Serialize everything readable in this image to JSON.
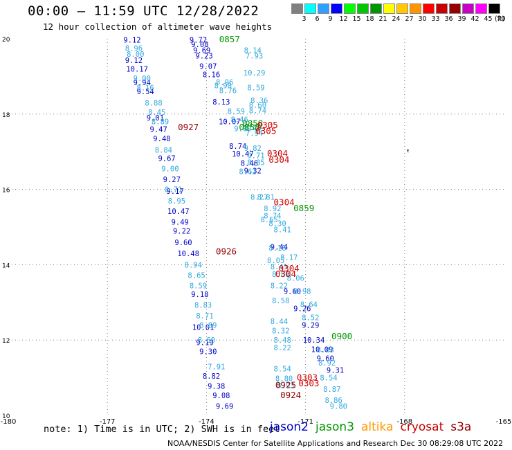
{
  "header": {
    "title": "00:00 – 11:59 UTC 12/28/2022",
    "subtitle": "12 hour collection of altimeter wave heights"
  },
  "colorbar": {
    "labels": [
      "3",
      "6",
      "9",
      "12",
      "15",
      "18",
      "21",
      "24",
      "27",
      "30",
      "33",
      "36",
      "39",
      "42",
      "45",
      "70"
    ],
    "unit": "(ft)",
    "colors": [
      "#808080",
      "#00ffff",
      "#30a0ff",
      "#0000ff",
      "#00ff00",
      "#00c800",
      "#009600",
      "#ffff00",
      "#ffc800",
      "#ff9600",
      "#ff0000",
      "#c80000",
      "#960000",
      "#c800c8",
      "#ff00ff",
      "#000000"
    ]
  },
  "footer": {
    "note": "note: 1) Time is in UTC; 2) SWH is in feet",
    "credit": "NOAA/NESDIS Center for Satellite Applications and Research  Dec 30 08:29:08 UTC 2022",
    "legend": [
      {
        "name": "jason2",
        "color": "#0000c8"
      },
      {
        "name": "jason3",
        "color": "#009600"
      },
      {
        "name": "altika",
        "color": "#ff9600"
      },
      {
        "name": "cryosat",
        "color": "#c80000"
      },
      {
        "name": "s3a",
        "color": "#960000"
      }
    ]
  },
  "chart_data": {
    "type": "scatter",
    "xlim": [
      -180,
      -165
    ],
    "ylim": [
      10,
      20
    ],
    "x_ticks": [
      -180,
      -177,
      -174,
      -171,
      -168,
      -165
    ],
    "x_tick_labels": [
      "-180",
      "-177",
      "-174",
      "-171",
      "-168",
      "-165"
    ],
    "y_ticks": [
      10,
      12,
      14,
      16,
      18,
      20
    ],
    "y_tick_labels": [
      "10",
      "12",
      "14",
      "16",
      "18",
      "20"
    ],
    "grid": true,
    "colors": {
      "jason2": "#0000c8",
      "altika_light": "#30a8e0",
      "jason3": "#009600",
      "cryosat": "#d00000",
      "s3a": "#960000"
    },
    "symbols": [
      {
        "x": -167.9,
        "y": 17.0,
        "text": "ᴱ"
      }
    ],
    "series": [
      {
        "name": "jason2",
        "color_key": "jason2",
        "points": [
          [
            -174.25,
            19.97,
            "9.77"
          ],
          [
            -174.2,
            19.85,
            "9.08"
          ],
          [
            -174.14,
            19.7,
            "9.69"
          ],
          [
            -174.07,
            19.55,
            "9.23"
          ],
          [
            -173.95,
            19.27,
            "9.07"
          ],
          [
            -173.85,
            19.05,
            "8.16"
          ],
          [
            -173.55,
            18.33,
            "8.13"
          ],
          [
            -173.3,
            17.8,
            "10.07"
          ],
          [
            -173.05,
            17.15,
            "8.74"
          ],
          [
            -172.9,
            16.95,
            "10.47"
          ],
          [
            -172.7,
            16.7,
            "8.46"
          ],
          [
            -172.6,
            16.5,
            "9.32"
          ],
          [
            -171.8,
            14.48,
            "9.44"
          ],
          [
            -171.4,
            13.3,
            "9.60"
          ],
          [
            -171.1,
            12.84,
            "9.26"
          ],
          [
            -170.85,
            12.4,
            "9.29"
          ],
          [
            -170.75,
            12.0,
            "10.34"
          ],
          [
            -170.5,
            11.76,
            "10.09"
          ],
          [
            -170.4,
            11.52,
            "9.60"
          ],
          [
            -170.1,
            11.2,
            "9.31"
          ]
        ]
      },
      {
        "name": "jason2",
        "color_key": "jason2",
        "points": [
          [
            -176.25,
            19.97,
            "9.12"
          ],
          [
            -176.2,
            19.43,
            "9.12"
          ],
          [
            -176.1,
            19.2,
            "10.17"
          ],
          [
            -175.95,
            18.84,
            "9.94"
          ],
          [
            -175.85,
            18.6,
            "9.54"
          ],
          [
            -175.55,
            17.9,
            "9.01"
          ],
          [
            -175.45,
            17.6,
            "9.47"
          ],
          [
            -175.35,
            17.35,
            "9.48"
          ],
          [
            -175.2,
            16.83,
            "9.67"
          ],
          [
            -175.05,
            16.27,
            "9.27"
          ],
          [
            -174.95,
            15.96,
            "9.17"
          ],
          [
            -174.85,
            15.42,
            "10.47"
          ],
          [
            -174.8,
            15.14,
            "9.49"
          ],
          [
            -174.75,
            14.9,
            "9.22"
          ],
          [
            -174.7,
            14.6,
            "9.60"
          ],
          [
            -174.55,
            14.3,
            "10.48"
          ],
          [
            -174.2,
            13.22,
            "9.18"
          ],
          [
            -174.1,
            12.34,
            "10.01"
          ],
          [
            -174.05,
            11.94,
            "9.19"
          ],
          [
            -173.95,
            11.7,
            "9.30"
          ],
          [
            -173.85,
            11.05,
            "8.82"
          ],
          [
            -173.7,
            10.78,
            "9.38"
          ],
          [
            -173.55,
            10.53,
            "9.08"
          ],
          [
            -173.45,
            10.25,
            "9.69"
          ]
        ]
      },
      {
        "name": "altika",
        "color_key": "altika_light",
        "points": [
          [
            -176.2,
            19.75,
            "8.96"
          ],
          [
            -176.15,
            19.6,
            "8.00"
          ],
          [
            -175.95,
            18.95,
            "9.00"
          ],
          [
            -175.85,
            18.7,
            "8.16"
          ],
          [
            -175.6,
            18.3,
            "8.88"
          ],
          [
            -175.5,
            18.05,
            "8.45"
          ],
          [
            -175.4,
            17.8,
            "8.89"
          ],
          [
            -175.3,
            17.05,
            "8.84"
          ],
          [
            -175.1,
            16.55,
            "9.00"
          ],
          [
            -175.0,
            16.0,
            "8.71"
          ],
          [
            -174.9,
            15.7,
            "8.95"
          ],
          [
            -174.4,
            14.0,
            "8.94"
          ],
          [
            -174.3,
            13.72,
            "8.65"
          ],
          [
            -174.25,
            13.45,
            "8.59"
          ],
          [
            -174.1,
            12.93,
            "8.83"
          ],
          [
            -174.05,
            12.65,
            "8.71"
          ],
          [
            -173.95,
            12.4,
            "8.89"
          ],
          [
            -174.0,
            12.0,
            "8.60"
          ],
          [
            -173.7,
            11.3,
            "7.91"
          ],
          [
            -172.6,
            19.7,
            "8.14"
          ],
          [
            -172.55,
            19.55,
            "7.93"
          ],
          [
            -172.55,
            19.1,
            "10.29"
          ],
          [
            -172.5,
            18.7,
            "8.59"
          ],
          [
            -172.4,
            18.36,
            "8.36"
          ],
          [
            -172.45,
            18.24,
            "8.60"
          ],
          [
            -172.45,
            18.1,
            "8.74"
          ],
          [
            -172.6,
            17.65,
            "8.28"
          ],
          [
            -172.55,
            17.5,
            "7.94"
          ],
          [
            -172.6,
            17.1,
            "9.82"
          ],
          [
            -172.5,
            16.9,
            "9.71"
          ],
          [
            -172.5,
            16.72,
            "8.85"
          ],
          [
            -172.2,
            15.8,
            "8.81"
          ],
          [
            -172.0,
            15.5,
            "8.92"
          ],
          [
            -172.0,
            15.3,
            "8.74"
          ],
          [
            -171.85,
            15.1,
            "8.30"
          ],
          [
            -171.7,
            14.94,
            "8.41"
          ],
          [
            -171.85,
            14.45,
            "8.16"
          ],
          [
            -171.9,
            14.12,
            "8.05"
          ],
          [
            -171.8,
            13.95,
            "8.45"
          ],
          [
            -171.75,
            13.75,
            "8.80"
          ],
          [
            -171.8,
            13.45,
            "8.22"
          ],
          [
            -171.75,
            13.05,
            "8.58"
          ],
          [
            -171.8,
            12.5,
            "8.44"
          ],
          [
            -171.75,
            12.25,
            "8.32"
          ],
          [
            -171.7,
            12.0,
            "8.48"
          ],
          [
            -171.7,
            11.8,
            "8.22"
          ],
          [
            -171.7,
            11.24,
            "8.54"
          ],
          [
            -171.65,
            10.98,
            "8.80"
          ],
          [
            -171.6,
            10.8,
            "8.93"
          ],
          [
            -170.4,
            11.75,
            "8.83"
          ],
          [
            -170.35,
            11.4,
            "8.92"
          ],
          [
            -170.3,
            11.0,
            "8.54"
          ],
          [
            -170.2,
            10.7,
            "8.87"
          ],
          [
            -170.15,
            10.4,
            "8.86"
          ],
          [
            -170.0,
            10.25,
            "9.80"
          ],
          [
            -173.5,
            18.76,
            "8.90"
          ],
          [
            -173.45,
            18.85,
            "8.96"
          ],
          [
            -173.35,
            18.63,
            "8.76"
          ],
          [
            -173.1,
            18.08,
            "8.59"
          ],
          [
            -173.0,
            17.86,
            "8.46"
          ],
          [
            -172.9,
            17.62,
            "9.02"
          ],
          [
            -172.75,
            16.48,
            "8.62"
          ],
          [
            -172.4,
            15.8,
            "8.27"
          ],
          [
            -172.1,
            15.2,
            "8.65"
          ],
          [
            -171.5,
            14.2,
            "8.17"
          ],
          [
            -171.3,
            13.65,
            "8.06"
          ],
          [
            -171.1,
            13.3,
            "8.98"
          ],
          [
            -170.9,
            12.95,
            "8.64"
          ],
          [
            -170.85,
            12.6,
            "8.52"
          ]
        ]
      },
      {
        "name": "jason3",
        "color_key": "jason3",
        "points": [
          [
            -173.3,
            19.98,
            "0857"
          ],
          [
            -172.6,
            17.75,
            "0858"
          ],
          [
            -172.7,
            17.65,
            "0858"
          ],
          [
            -171.05,
            15.5,
            "0859"
          ],
          [
            -169.9,
            12.1,
            "0900"
          ]
        ]
      },
      {
        "name": "cryosat",
        "color_key": "cryosat",
        "points": [
          [
            -172.15,
            17.7,
            "0305"
          ],
          [
            -172.2,
            17.55,
            "0305"
          ],
          [
            -171.85,
            16.95,
            "0304"
          ],
          [
            -171.8,
            16.78,
            "0304"
          ],
          [
            -171.65,
            15.65,
            "0304"
          ],
          [
            -171.5,
            13.9,
            "0304"
          ],
          [
            -171.6,
            13.75,
            "0304"
          ],
          [
            -170.95,
            11.0,
            "0303"
          ],
          [
            -170.9,
            10.85,
            "0303"
          ]
        ]
      },
      {
        "name": "s3a",
        "color_key": "s3a",
        "points": [
          [
            -174.55,
            17.65,
            "0927"
          ],
          [
            -173.4,
            14.35,
            "0926"
          ],
          [
            -171.6,
            10.8,
            "0925"
          ],
          [
            -171.45,
            10.53,
            "0924"
          ]
        ]
      }
    ]
  }
}
